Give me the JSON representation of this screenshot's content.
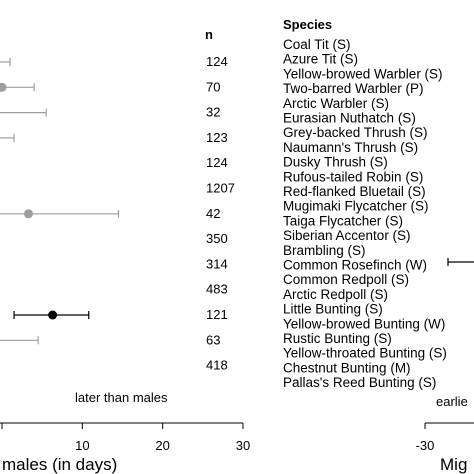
{
  "chart_data": {
    "type": "scatter",
    "title": "",
    "xlabel": "males (in days)",
    "xlim": [
      -2,
      30
    ],
    "x_ticks": [
      "10",
      "20",
      "30"
    ],
    "annotation_left": "later than males",
    "n_header": "n",
    "n_values": [
      "124",
      "70",
      "32",
      "123",
      "124",
      "1207",
      "42",
      "350",
      "314",
      "483",
      "121",
      "63",
      "418"
    ],
    "species_header": "Species",
    "species": [
      "Coal Tit (S)",
      "Azure Tit (S)",
      "Yellow-browed Warbler (S)",
      "Two-barred Warbler (P)",
      "Arctic Warbler (S)",
      "Eurasian Nuthatch (S)",
      "Grey-backed Thrush (S)",
      "Naumann's Thrush (S)",
      "Dusky Thrush (S)",
      "Rufous-tailed Robin (S)",
      "Red-flanked Bluetail (S)",
      "Mugimaki Flycatcher (S)",
      "Taiga Flycatcher (S)",
      "Siberian Accentor (S)",
      "Brambling (S)",
      "Common Rosefinch (W)",
      "Common Redpoll (S)",
      "Arctic Redpoll (S)",
      "Little Bunting (S)",
      "Yellow-browed Bunting (W)",
      "Rustic Bunting (S)",
      "Yellow-throated Bunting (S)",
      "Chestnut Bunting (M)",
      "Pallas's Reed Bunting (S)"
    ],
    "rows": [
      {
        "n": "124",
        "mean": null,
        "lo": -2,
        "hi": 1.0,
        "color": "#9e9e9e"
      },
      {
        "n": "70",
        "mean": 0.0,
        "lo": -2,
        "hi": 4.0,
        "color": "#9e9e9e"
      },
      {
        "n": "32",
        "mean": null,
        "lo": -2,
        "hi": 5.5,
        "color": "#9e9e9e"
      },
      {
        "n": "123",
        "mean": null,
        "lo": -2,
        "hi": 1.5,
        "color": "#9e9e9e"
      },
      {
        "n": "124",
        "mean": null,
        "lo": -2,
        "hi": -0.5,
        "color": "#9e9e9e"
      },
      {
        "n": "1207",
        "mean": null,
        "lo": -2,
        "hi": -1.0,
        "color": "#9e9e9e"
      },
      {
        "n": "42",
        "mean": 3.3,
        "lo": -2,
        "hi": 14.5,
        "color": "#9e9e9e"
      },
      {
        "n": "350",
        "mean": null,
        "lo": null,
        "hi": null,
        "color": "#9e9e9e"
      },
      {
        "n": "314",
        "mean": null,
        "lo": null,
        "hi": null,
        "color": "#9e9e9e"
      },
      {
        "n": "483",
        "mean": null,
        "lo": -2,
        "hi": -1.0,
        "color": "#9e9e9e"
      },
      {
        "n": "121",
        "mean": 6.3,
        "lo": 1.5,
        "hi": 10.8,
        "color": "#000000"
      },
      {
        "n": "63",
        "mean": null,
        "lo": -2,
        "hi": 4.5,
        "color": "#9e9e9e"
      },
      {
        "n": "418",
        "mean": null,
        "lo": null,
        "hi": null,
        "color": "#9e9e9e"
      }
    ],
    "right_panel": {
      "xlabel_partial": "Mig",
      "x_ticks": [
        "-30"
      ],
      "annotation_partial": "earlie",
      "segment": {
        "y_row": "Common Rosefinch (W)"
      }
    }
  }
}
